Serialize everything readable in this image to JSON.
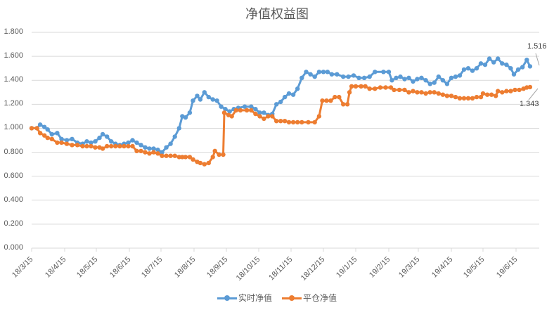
{
  "chart_data": {
    "type": "line",
    "title": "净值权益图",
    "xlabel": "",
    "ylabel": "",
    "ylim": [
      0,
      1.8
    ],
    "y_ticks": [
      "1.800",
      "1.600",
      "1.400",
      "1.200",
      "1.000",
      "0.800",
      "0.600",
      "0.400",
      "0.200",
      "0.000"
    ],
    "x_ticks": [
      "18/3/15",
      "18/4/15",
      "18/5/15",
      "18/6/15",
      "18/7/15",
      "18/8/15",
      "18/9/15",
      "18/10/15",
      "18/11/15",
      "18/12/15",
      "19/1/15",
      "19/2/15",
      "19/3/15",
      "19/4/15",
      "19/5/15",
      "19/6/15"
    ],
    "grid": true,
    "legend_position": "bottom",
    "series": [
      {
        "name": "实时净值",
        "color": "#5B9BD5",
        "end_label": "1.516",
        "points": [
          [
            "18/3/15",
            1.0
          ],
          [
            "18/3/20",
            1.0
          ],
          [
            "18/3/23",
            1.03
          ],
          [
            "18/3/27",
            1.01
          ],
          [
            "18/3/30",
            0.99
          ],
          [
            "18/4/3",
            0.95
          ],
          [
            "18/4/8",
            0.96
          ],
          [
            "18/4/12",
            0.91
          ],
          [
            "18/4/17",
            0.9
          ],
          [
            "18/4/22",
            0.91
          ],
          [
            "18/4/27",
            0.88
          ],
          [
            "18/5/2",
            0.87
          ],
          [
            "18/5/6",
            0.89
          ],
          [
            "18/5/10",
            0.88
          ],
          [
            "18/5/14",
            0.89
          ],
          [
            "18/5/18",
            0.92
          ],
          [
            "18/5/21",
            0.95
          ],
          [
            "18/5/25",
            0.93
          ],
          [
            "18/5/29",
            0.89
          ],
          [
            "18/6/2",
            0.87
          ],
          [
            "18/6/6",
            0.86
          ],
          [
            "18/6/10",
            0.87
          ],
          [
            "18/6/14",
            0.88
          ],
          [
            "18/6/18",
            0.9
          ],
          [
            "18/6/22",
            0.88
          ],
          [
            "18/6/26",
            0.86
          ],
          [
            "18/6/30",
            0.84
          ],
          [
            "18/7/4",
            0.83
          ],
          [
            "18/7/8",
            0.83
          ],
          [
            "18/7/12",
            0.82
          ],
          [
            "18/7/16",
            0.8
          ],
          [
            "18/7/20",
            0.84
          ],
          [
            "18/7/24",
            0.87
          ],
          [
            "18/7/28",
            0.93
          ],
          [
            "18/8/1",
            1.0
          ],
          [
            "18/8/4",
            1.1
          ],
          [
            "18/8/7",
            1.09
          ],
          [
            "18/8/11",
            1.13
          ],
          [
            "18/8/14",
            1.23
          ],
          [
            "18/8/18",
            1.27
          ],
          [
            "18/8/21",
            1.24
          ],
          [
            "18/8/25",
            1.3
          ],
          [
            "18/8/29",
            1.26
          ],
          [
            "18/9/2",
            1.24
          ],
          [
            "18/9/6",
            1.23
          ],
          [
            "18/9/10",
            1.18
          ],
          [
            "18/9/14",
            1.16
          ],
          [
            "18/9/18",
            1.14
          ],
          [
            "18/9/22",
            1.16
          ],
          [
            "18/9/26",
            1.17
          ],
          [
            "18/10/2",
            1.18
          ],
          [
            "18/10/8",
            1.18
          ],
          [
            "18/10/12",
            1.16
          ],
          [
            "18/10/16",
            1.13
          ],
          [
            "18/10/20",
            1.13
          ],
          [
            "18/10/24",
            1.11
          ],
          [
            "18/10/28",
            1.12
          ],
          [
            "18/11/1",
            1.2
          ],
          [
            "18/11/5",
            1.22
          ],
          [
            "18/11/9",
            1.26
          ],
          [
            "18/11/13",
            1.29
          ],
          [
            "18/11/17",
            1.28
          ],
          [
            "18/11/21",
            1.33
          ],
          [
            "18/11/25",
            1.42
          ],
          [
            "18/11/29",
            1.47
          ],
          [
            "18/12/3",
            1.45
          ],
          [
            "18/12/7",
            1.43
          ],
          [
            "18/12/11",
            1.47
          ],
          [
            "18/12/15",
            1.47
          ],
          [
            "18/12/19",
            1.47
          ],
          [
            "18/12/23",
            1.45
          ],
          [
            "18/12/28",
            1.45
          ],
          [
            "19/1/3",
            1.43
          ],
          [
            "19/1/8",
            1.43
          ],
          [
            "19/1/13",
            1.44
          ],
          [
            "19/1/18",
            1.42
          ],
          [
            "19/1/23",
            1.42
          ],
          [
            "19/1/28",
            1.43
          ],
          [
            "19/2/2",
            1.47
          ],
          [
            "19/2/10",
            1.47
          ],
          [
            "19/2/15",
            1.47
          ],
          [
            "19/2/18",
            1.4
          ],
          [
            "19/2/22",
            1.42
          ],
          [
            "19/2/26",
            1.43
          ],
          [
            "19/3/2",
            1.41
          ],
          [
            "19/3/6",
            1.42
          ],
          [
            "19/3/10",
            1.39
          ],
          [
            "19/3/14",
            1.41
          ],
          [
            "19/3/18",
            1.42
          ],
          [
            "19/3/22",
            1.4
          ],
          [
            "19/3/26",
            1.37
          ],
          [
            "19/3/30",
            1.38
          ],
          [
            "19/4/3",
            1.43
          ],
          [
            "19/4/7",
            1.4
          ],
          [
            "19/4/11",
            1.37
          ],
          [
            "19/4/15",
            1.42
          ],
          [
            "19/4/19",
            1.43
          ],
          [
            "19/4/23",
            1.44
          ],
          [
            "19/4/27",
            1.49
          ],
          [
            "19/5/1",
            1.5
          ],
          [
            "19/5/5",
            1.48
          ],
          [
            "19/5/9",
            1.5
          ],
          [
            "19/5/13",
            1.54
          ],
          [
            "19/5/17",
            1.53
          ],
          [
            "19/5/21",
            1.58
          ],
          [
            "19/5/25",
            1.55
          ],
          [
            "19/5/29",
            1.58
          ],
          [
            "19/6/2",
            1.54
          ],
          [
            "19/6/6",
            1.53
          ],
          [
            "19/6/10",
            1.5
          ],
          [
            "19/6/13",
            1.45
          ],
          [
            "19/6/17",
            1.49
          ],
          [
            "19/6/21",
            1.51
          ],
          [
            "19/6/25",
            1.57
          ],
          [
            "19/6/28",
            1.516
          ]
        ]
      },
      {
        "name": "平仓净值",
        "color": "#ED7D31",
        "end_label": "1.343",
        "points": [
          [
            "18/3/15",
            1.0
          ],
          [
            "18/3/20",
            1.0
          ],
          [
            "18/3/23",
            0.96
          ],
          [
            "18/3/27",
            0.94
          ],
          [
            "18/3/30",
            0.92
          ],
          [
            "18/4/3",
            0.91
          ],
          [
            "18/4/8",
            0.88
          ],
          [
            "18/4/12",
            0.88
          ],
          [
            "18/4/17",
            0.87
          ],
          [
            "18/4/22",
            0.86
          ],
          [
            "18/4/27",
            0.86
          ],
          [
            "18/5/2",
            0.85
          ],
          [
            "18/5/6",
            0.85
          ],
          [
            "18/5/10",
            0.85
          ],
          [
            "18/5/14",
            0.84
          ],
          [
            "18/5/18",
            0.84
          ],
          [
            "18/5/21",
            0.83
          ],
          [
            "18/5/25",
            0.85
          ],
          [
            "18/5/29",
            0.85
          ],
          [
            "18/6/2",
            0.85
          ],
          [
            "18/6/6",
            0.85
          ],
          [
            "18/6/10",
            0.85
          ],
          [
            "18/6/14",
            0.85
          ],
          [
            "18/6/18",
            0.85
          ],
          [
            "18/6/22",
            0.81
          ],
          [
            "18/6/26",
            0.81
          ],
          [
            "18/6/30",
            0.8
          ],
          [
            "18/7/4",
            0.79
          ],
          [
            "18/7/8",
            0.8
          ],
          [
            "18/7/12",
            0.79
          ],
          [
            "18/7/16",
            0.77
          ],
          [
            "18/7/20",
            0.77
          ],
          [
            "18/7/24",
            0.77
          ],
          [
            "18/7/28",
            0.77
          ],
          [
            "18/8/1",
            0.76
          ],
          [
            "18/8/4",
            0.76
          ],
          [
            "18/8/7",
            0.76
          ],
          [
            "18/8/11",
            0.76
          ],
          [
            "18/8/14",
            0.74
          ],
          [
            "18/8/18",
            0.72
          ],
          [
            "18/8/21",
            0.71
          ],
          [
            "18/8/25",
            0.7
          ],
          [
            "18/8/29",
            0.71
          ],
          [
            "18/9/2",
            0.76
          ],
          [
            "18/9/4",
            0.81
          ],
          [
            "18/9/8",
            0.78
          ],
          [
            "18/9/12",
            0.78
          ],
          [
            "18/9/13",
            1.13
          ],
          [
            "18/9/17",
            1.11
          ],
          [
            "18/9/20",
            1.1
          ],
          [
            "18/9/24",
            1.15
          ],
          [
            "18/9/28",
            1.15
          ],
          [
            "18/10/4",
            1.15
          ],
          [
            "18/10/8",
            1.15
          ],
          [
            "18/10/12",
            1.12
          ],
          [
            "18/10/16",
            1.1
          ],
          [
            "18/10/20",
            1.08
          ],
          [
            "18/10/24",
            1.1
          ],
          [
            "18/10/28",
            1.1
          ],
          [
            "18/11/1",
            1.06
          ],
          [
            "18/11/5",
            1.06
          ],
          [
            "18/11/9",
            1.06
          ],
          [
            "18/11/13",
            1.05
          ],
          [
            "18/11/17",
            1.05
          ],
          [
            "18/11/21",
            1.05
          ],
          [
            "18/11/25",
            1.05
          ],
          [
            "18/12/1",
            1.05
          ],
          [
            "18/12/7",
            1.05
          ],
          [
            "18/12/11",
            1.1
          ],
          [
            "18/12/14",
            1.23
          ],
          [
            "18/12/18",
            1.23
          ],
          [
            "18/12/22",
            1.23
          ],
          [
            "18/12/26",
            1.26
          ],
          [
            "18/12/30",
            1.26
          ],
          [
            "19/1/3",
            1.2
          ],
          [
            "19/1/7",
            1.2
          ],
          [
            "19/1/9",
            1.3
          ],
          [
            "19/1/11",
            1.35
          ],
          [
            "19/1/15",
            1.35
          ],
          [
            "19/1/20",
            1.35
          ],
          [
            "19/1/24",
            1.35
          ],
          [
            "19/1/28",
            1.33
          ],
          [
            "19/2/2",
            1.33
          ],
          [
            "19/2/7",
            1.34
          ],
          [
            "19/2/12",
            1.34
          ],
          [
            "19/2/17",
            1.34
          ],
          [
            "19/2/20",
            1.32
          ],
          [
            "19/2/25",
            1.32
          ],
          [
            "19/3/2",
            1.32
          ],
          [
            "19/3/6",
            1.3
          ],
          [
            "19/3/10",
            1.31
          ],
          [
            "19/3/14",
            1.3
          ],
          [
            "19/3/18",
            1.3
          ],
          [
            "19/3/22",
            1.29
          ],
          [
            "19/3/26",
            1.3
          ],
          [
            "19/3/30",
            1.3
          ],
          [
            "19/4/3",
            1.29
          ],
          [
            "19/4/7",
            1.28
          ],
          [
            "19/4/11",
            1.27
          ],
          [
            "19/4/15",
            1.27
          ],
          [
            "19/4/19",
            1.26
          ],
          [
            "19/4/23",
            1.25
          ],
          [
            "19/4/27",
            1.25
          ],
          [
            "19/5/1",
            1.25
          ],
          [
            "19/5/5",
            1.25
          ],
          [
            "19/5/9",
            1.26
          ],
          [
            "19/5/13",
            1.26
          ],
          [
            "19/5/15",
            1.29
          ],
          [
            "19/5/19",
            1.28
          ],
          [
            "19/5/23",
            1.28
          ],
          [
            "19/5/27",
            1.27
          ],
          [
            "19/5/29",
            1.31
          ],
          [
            "19/6/2",
            1.3
          ],
          [
            "19/6/6",
            1.31
          ],
          [
            "19/6/10",
            1.31
          ],
          [
            "19/6/14",
            1.32
          ],
          [
            "19/6/18",
            1.32
          ],
          [
            "19/6/22",
            1.33
          ],
          [
            "19/6/25",
            1.34
          ],
          [
            "19/6/28",
            1.343
          ]
        ]
      }
    ]
  },
  "legend": {
    "items": [
      {
        "label": "实时净值",
        "color": "#5B9BD5"
      },
      {
        "label": "平仓净值",
        "color": "#ED7D31"
      }
    ]
  },
  "annotations": {
    "realtime_end": "1.516",
    "closed_end": "1.343"
  }
}
